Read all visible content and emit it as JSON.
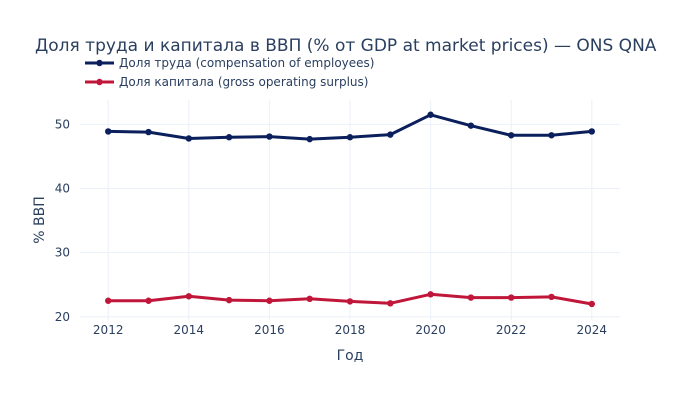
{
  "chart_data": {
    "type": "line",
    "title": "Доля труда и капитала в ВВП (% от GDP at market prices) — ONS QNA",
    "xlabel": "Год",
    "ylabel": "% ВВП",
    "x": [
      2012,
      2013,
      2014,
      2015,
      2016,
      2017,
      2018,
      2019,
      2020,
      2021,
      2022,
      2023,
      2024
    ],
    "x_ticks": [
      2012,
      2014,
      2016,
      2018,
      2020,
      2022,
      2024
    ],
    "y_ticks": [
      20,
      30,
      40,
      50
    ],
    "xlim": [
      2011.3,
      2024.7
    ],
    "ylim": [
      19.5,
      53.8
    ],
    "grid": true,
    "legend_position": "top-left",
    "series": [
      {
        "name": "Доля труда (compensation of employees)",
        "color": "#0b1f5c",
        "values": [
          48.9,
          48.8,
          47.8,
          48.0,
          48.1,
          47.7,
          48.0,
          48.4,
          51.5,
          49.8,
          48.3,
          48.3,
          48.9
        ]
      },
      {
        "name": "Доля капитала (gross operating surplus)",
        "color": "#c0163a",
        "values": [
          22.5,
          22.5,
          23.2,
          22.6,
          22.5,
          22.8,
          22.4,
          22.1,
          23.5,
          23.0,
          23.0,
          23.1,
          22.0
        ]
      }
    ]
  }
}
